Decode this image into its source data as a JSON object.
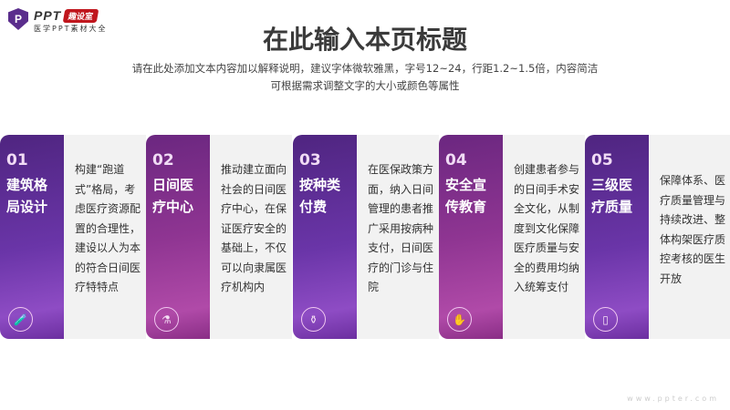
{
  "logo": {
    "mark": "P",
    "brand": "PPT",
    "badge": "趣设室",
    "tagline": "医学PPT素材大全"
  },
  "title": "在此输入本页标题",
  "subtitle": [
    "请在此处添加文本内容加以解释说明，建议字体微软雅黑，字号12~24，行距1.2~1.5倍，内容简洁",
    "可根据需求调整文字的大小或颜色等属性"
  ],
  "colors": {
    "purple": "#5a2d8c",
    "magenta": "#9a3a96",
    "text_bg": "#f2f2f2"
  },
  "cards": [
    {
      "num": "01",
      "title": "建筑格局设计",
      "text": "构建“跑道式”格局，考虑医疗资源配置的合理性，建设以人为本的符合日间医疗特特点",
      "icon": "test-tube-icon",
      "color": "purple"
    },
    {
      "num": "02",
      "title": "日间医疗中心",
      "text": "推动建立面向社会的日间医疗中心，在保证医疗安全的基础上，不仅可以向隶属医疗机构内",
      "icon": "pipette-icon",
      "color": "magenta"
    },
    {
      "num": "03",
      "title": "按种类付费",
      "text": "在医保政策方面，纳入日间管理的患者推广采用按病种支付，日间医疗的门诊与住院",
      "icon": "medicine-bottle-icon",
      "color": "purple"
    },
    {
      "num": "04",
      "title": "安全宣传教育",
      "text": "创建患者参与的日间手术安全文化，从制度到文化保障医疗质量与安全的费用均纳入统筹支付",
      "icon": "hand-wash-icon",
      "color": "magenta"
    },
    {
      "num": "05",
      "title": "三级医疗质量",
      "text": "保障体系、医疗质量管理与持续改进、整体构架医疗质控考核的医生开放",
      "icon": "pill-box-icon",
      "color": "purple"
    }
  ],
  "watermark": "www.ppter.com"
}
